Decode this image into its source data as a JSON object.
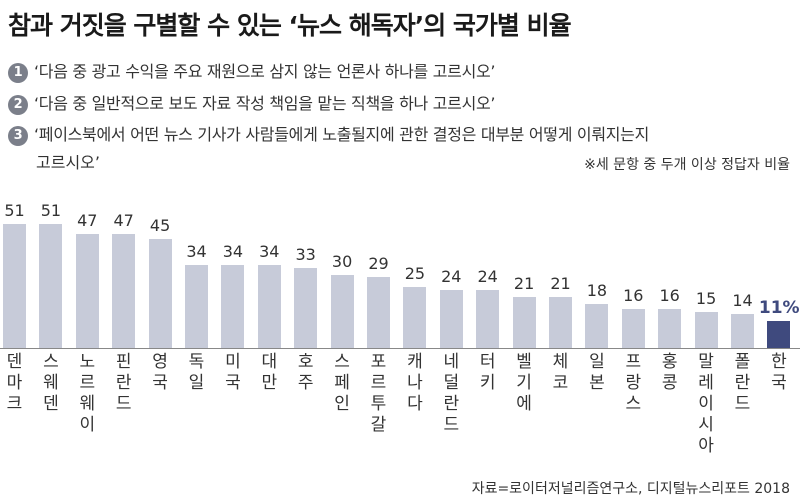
{
  "title": "참과 거짓을 구별할 수 있는 ‘뉴스 해독자’의 국가별 비율",
  "questions": [
    {
      "num": "1",
      "lines": [
        "‘다음 중 광고 수익을 주요 재원으로 삼지 않는 언론사 하나를 고르시오’"
      ]
    },
    {
      "num": "2",
      "lines": [
        "‘다음 중 일반적으로 보도 자료 작성 책임을 맡는 직책을 하나 고르시오’"
      ]
    },
    {
      "num": "3",
      "lines": [
        "‘페이스북에서 어떤 뉴스 기사가 사람들에게 노출될지에 관한 결정은 대부분 어떻게 이뤄지는지",
        "고르시오’"
      ]
    }
  ],
  "note": "※세 문항 중 두개 이상 정답자 비율",
  "source": "자료=로이터저널리즘연구소, 디지털뉴스리포트 2018",
  "colors": {
    "bar": "#c7cbd9",
    "highlight": "#3f4a7e"
  },
  "chart_data": {
    "type": "bar",
    "categories": [
      "덴마크",
      "스웨덴",
      "노르웨이",
      "핀란드",
      "영국",
      "독일",
      "미국",
      "대만",
      "호주",
      "스페인",
      "포르투갈",
      "캐나다",
      "네덜란드",
      "터키",
      "벨기에",
      "체코",
      "일본",
      "프랑스",
      "홍콩",
      "말레이시아",
      "폴란드",
      "한국"
    ],
    "values": [
      51,
      51,
      47,
      47,
      45,
      34,
      34,
      34,
      33,
      30,
      29,
      25,
      24,
      24,
      21,
      21,
      18,
      16,
      16,
      15,
      14,
      11
    ],
    "value_labels": [
      "51",
      "51",
      "47",
      "47",
      "45",
      "34",
      "34",
      "34",
      "33",
      "30",
      "29",
      "25",
      "24",
      "24",
      "21",
      "21",
      "18",
      "16",
      "16",
      "15",
      "14",
      "11%"
    ],
    "highlight": "한국",
    "ylim": [
      0,
      51
    ]
  }
}
